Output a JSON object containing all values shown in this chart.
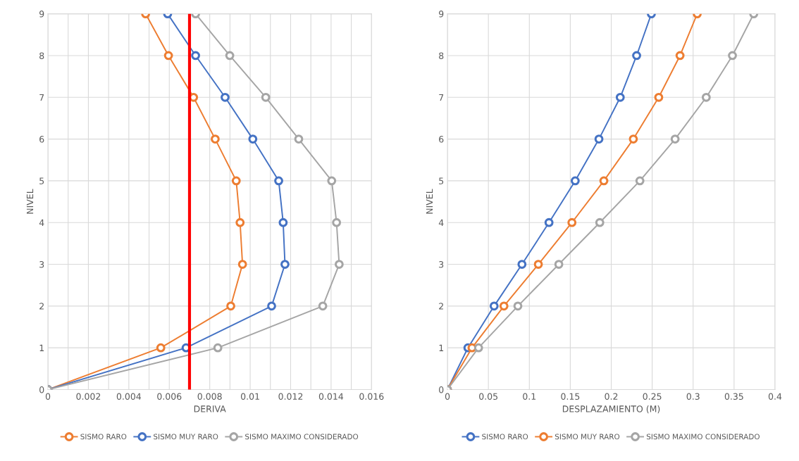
{
  "chart_data": [
    {
      "type": "line",
      "xlabel": "DERIVA",
      "ylabel": "NIVEL",
      "marker": "circle",
      "grid": true,
      "legend": "bottom",
      "xlim": [
        0,
        0.016
      ],
      "xticks": [
        0,
        {
          "value": 0.001,
          "label": null
        },
        0.002,
        {
          "value": 0.003,
          "label": null
        },
        0.004,
        {
          "value": 0.005,
          "label": null
        },
        0.006,
        {
          "value": 0.007,
          "label": null
        },
        0.008,
        {
          "value": 0.009,
          "label": null
        },
        0.01,
        {
          "value": 0.011,
          "label": null
        },
        0.012,
        {
          "value": 0.013,
          "label": null
        },
        0.014,
        {
          "value": 0.015,
          "label": null
        },
        0.016
      ],
      "ylim": [
        0,
        9
      ],
      "yticks": [
        0,
        1,
        2,
        3,
        4,
        5,
        6,
        7,
        8,
        9
      ],
      "series": [
        {
          "name": "SISMO RARO",
          "color": "#ed7d31",
          "x": [
            0,
            0.00558,
            0.00904,
            0.00962,
            0.0095,
            0.00931,
            0.00827,
            0.0072,
            0.00596,
            0.00483
          ],
          "values": [
            0,
            1,
            2,
            3,
            4,
            5,
            6,
            7,
            8,
            9
          ]
        },
        {
          "name": "SISMO MUY RARO",
          "color": "#4472c4",
          "x": [
            0,
            0.00683,
            0.01106,
            0.01172,
            0.01163,
            0.01141,
            0.01013,
            0.00876,
            0.0073,
            0.00592
          ],
          "values": [
            0,
            1,
            2,
            3,
            4,
            5,
            6,
            7,
            8,
            9
          ]
        },
        {
          "name": "SISMO MAXIMO CONSIDERADO",
          "color": "#a5a5a5",
          "x": [
            0,
            0.0084,
            0.01359,
            0.0144,
            0.01427,
            0.01403,
            0.0124,
            0.01077,
            0.00899,
            0.0073
          ],
          "values": [
            0,
            1,
            2,
            3,
            4,
            5,
            6,
            7,
            8,
            9
          ]
        }
      ],
      "ref_lines": [
        {
          "axis": "x",
          "value": 0.007,
          "color": "#ff0000",
          "line_style": "solid"
        }
      ]
    },
    {
      "type": "line",
      "xlabel": "DESPLAZAMIENTO (M)",
      "ylabel": "NIVEL",
      "marker": "circle",
      "grid": true,
      "legend": "bottom",
      "xlim": [
        0,
        0.4
      ],
      "xticks": [
        0,
        0.05,
        0.1,
        0.15,
        0.2,
        0.25,
        0.3,
        0.35,
        0.4
      ],
      "ylim": [
        0,
        9
      ],
      "yticks": [
        0,
        1,
        2,
        3,
        4,
        5,
        6,
        7,
        8,
        9
      ],
      "series": [
        {
          "name": "SISMO RARO",
          "color": "#4472c4",
          "x": [
            0,
            0.025,
            0.057,
            0.091,
            0.124,
            0.156,
            0.185,
            0.211,
            0.231,
            0.249
          ],
          "values": [
            0,
            1,
            2,
            3,
            4,
            5,
            6,
            7,
            8,
            9
          ]
        },
        {
          "name": "SISMO MUY RARO",
          "color": "#ed7d31",
          "x": [
            0,
            0.03,
            0.069,
            0.111,
            0.152,
            0.191,
            0.227,
            0.258,
            0.284,
            0.305
          ],
          "values": [
            0,
            1,
            2,
            3,
            4,
            5,
            6,
            7,
            8,
            9
          ]
        },
        {
          "name": "SISMO MAXIMO CONSIDERADO",
          "color": "#a5a5a5",
          "x": [
            0,
            0.038,
            0.086,
            0.136,
            0.186,
            0.235,
            0.278,
            0.316,
            0.348,
            0.374
          ],
          "values": [
            0,
            1,
            2,
            3,
            4,
            5,
            6,
            7,
            8,
            9
          ]
        }
      ]
    }
  ]
}
